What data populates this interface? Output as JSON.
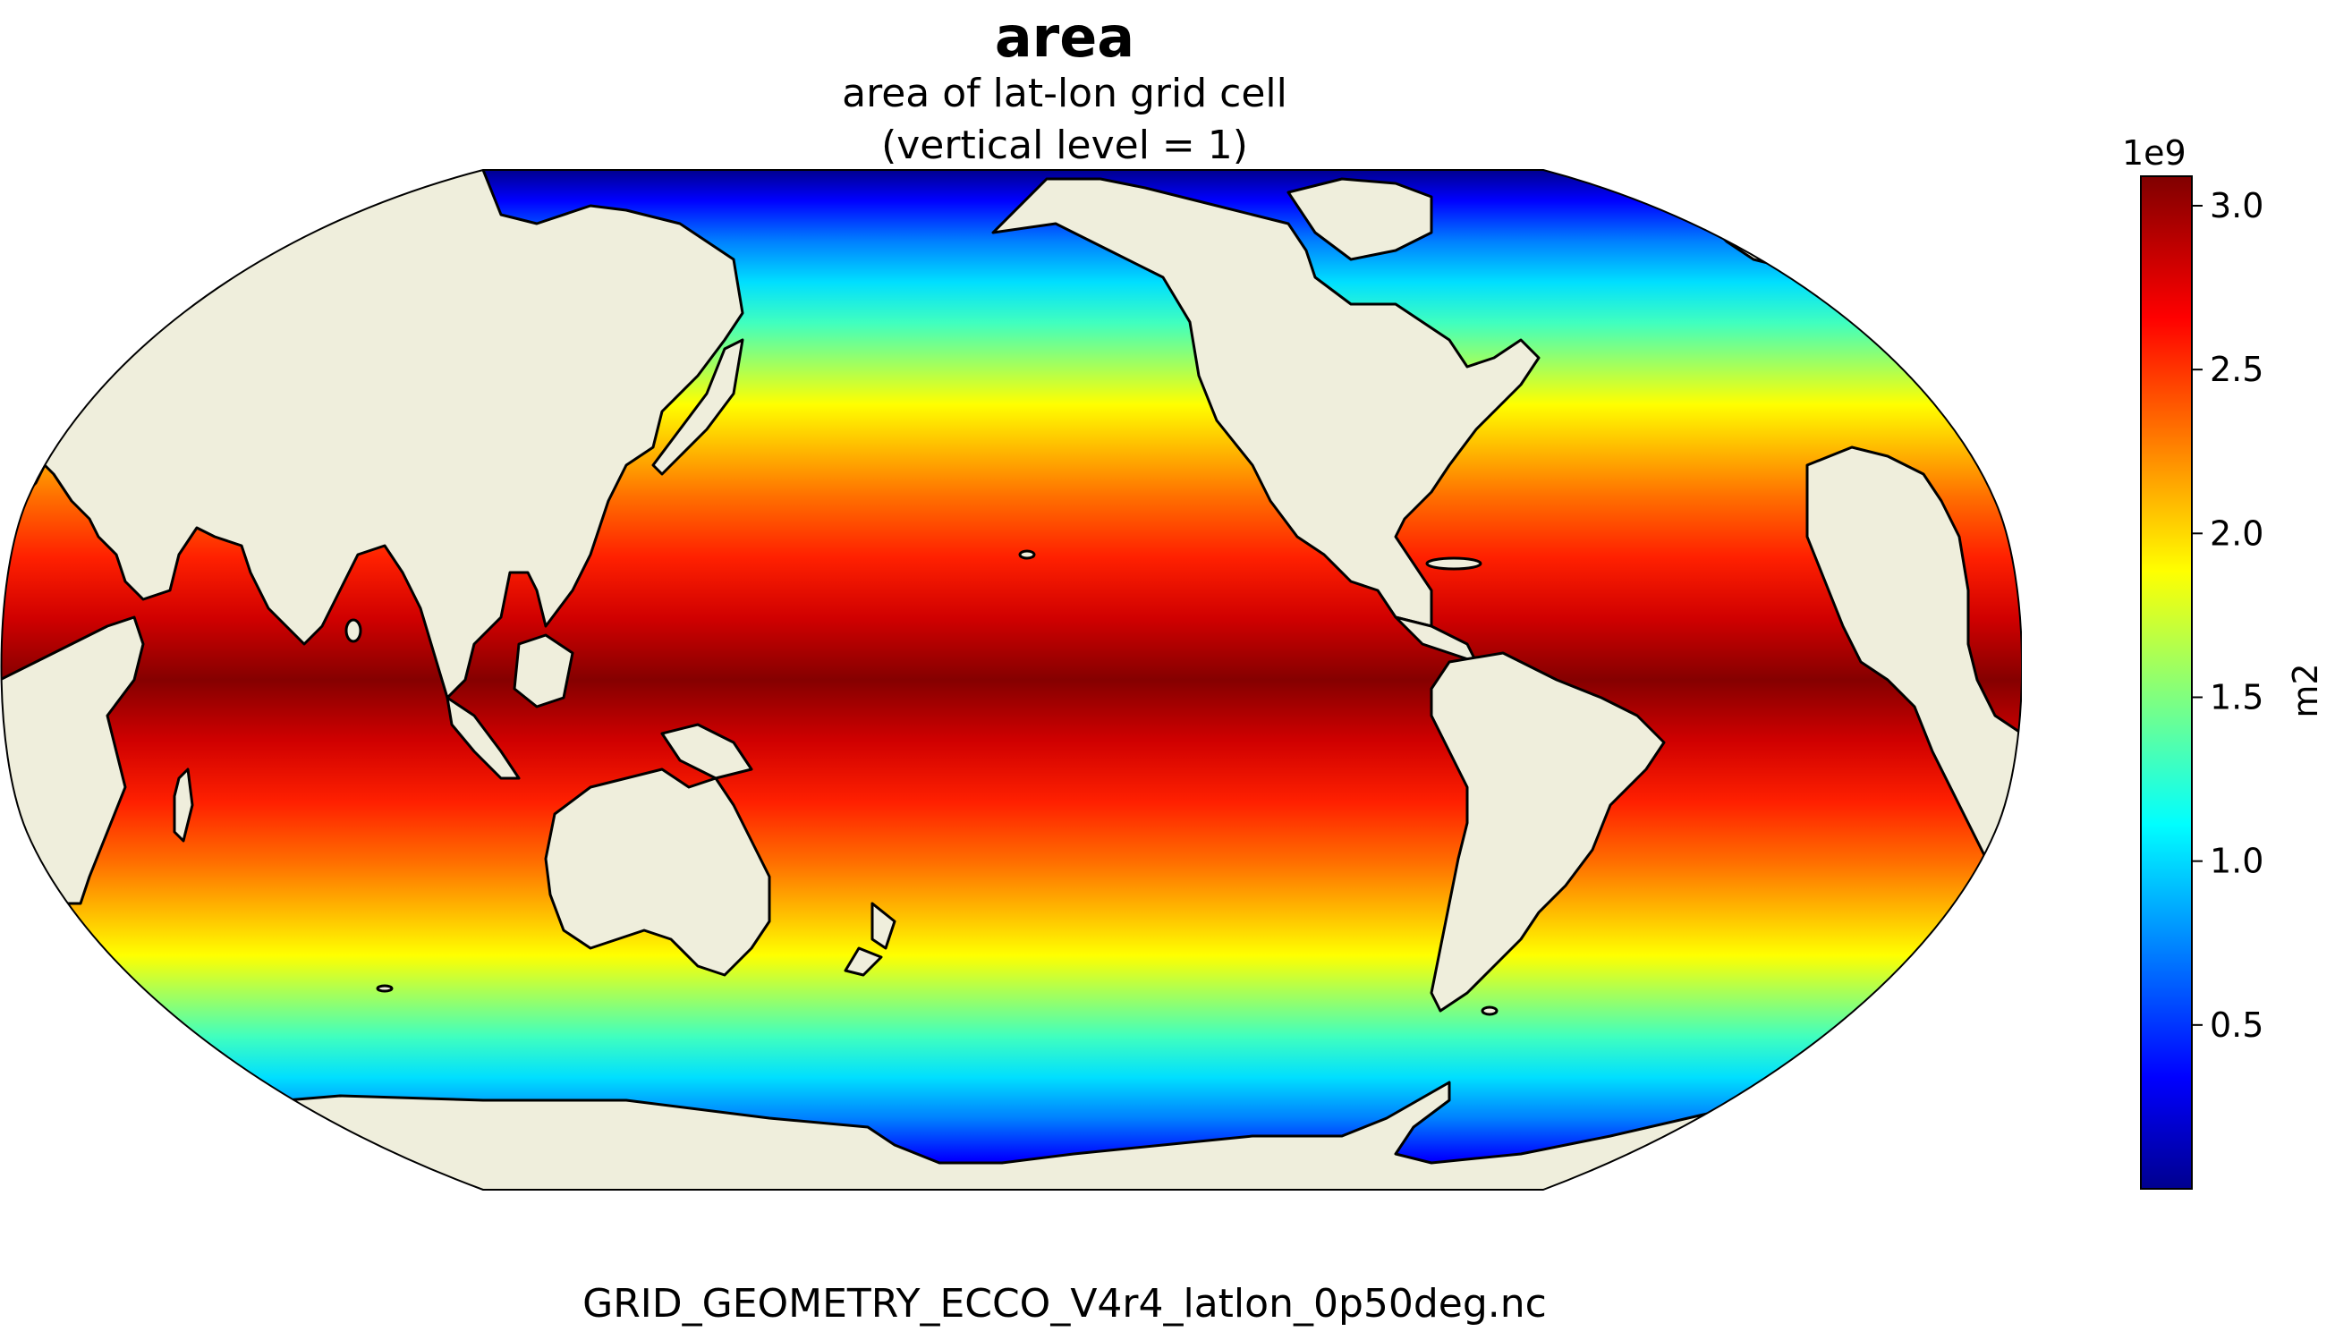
{
  "title": "area",
  "subtitle_line1": "area of lat-lon grid cell",
  "subtitle_line2": "(vertical level = 1)",
  "footer": "GRID_GEOMETRY_ECCO_V4r4_latlon_0p50deg.nc",
  "colormap": "jet",
  "land_color": "#efeedc",
  "coastline_color": "#000000",
  "projection": "Robinson, centered on Pacific",
  "colorbar": {
    "multiplier": "1e9",
    "label": "m2",
    "ticks": [
      {
        "value": 0.5,
        "label": "0.5"
      },
      {
        "value": 1.0,
        "label": "1.0"
      },
      {
        "value": 1.5,
        "label": "1.5"
      },
      {
        "value": 2.0,
        "label": "2.0"
      },
      {
        "value": 2.5,
        "label": "2.5"
      },
      {
        "value": 3.0,
        "label": "3.0"
      }
    ],
    "vmin": 0,
    "vmax": 3.09
  }
}
